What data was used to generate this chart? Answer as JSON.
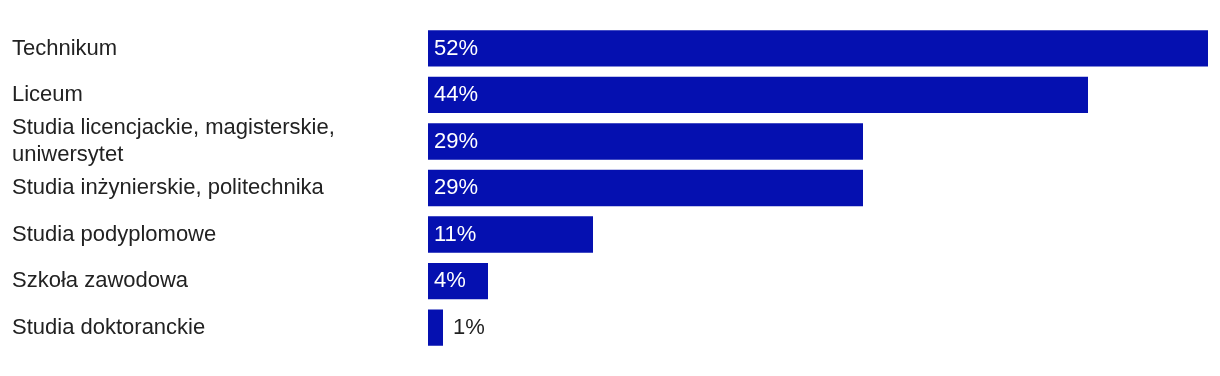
{
  "chart_data": {
    "type": "bar",
    "orientation": "horizontal",
    "categories": [
      "Technikum",
      "Liceum",
      "Studia licencjackie, magisterskie, uniwersytet",
      "Studia inżynierskie, politechnika",
      "Studia podyplomowe",
      "Szkoła zawodowa",
      "Studia doktoranckie"
    ],
    "values": [
      52,
      44,
      29,
      29,
      11,
      4,
      1
    ],
    "value_labels": [
      "52%",
      "44%",
      "29%",
      "29%",
      "11%",
      "4%",
      "1%"
    ],
    "color": "#0510b0",
    "xlim": [
      0,
      52
    ],
    "tick_labels": "y",
    "legend": false
  }
}
